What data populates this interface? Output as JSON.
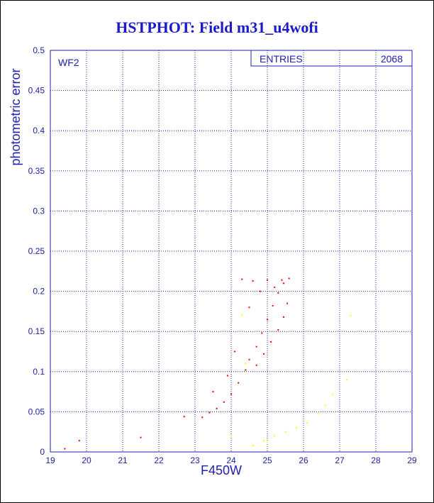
{
  "title": "HSTPHOT: Field m31_u4wofi",
  "chart_data": {
    "type": "scatter",
    "xlabel": "F450W",
    "ylabel": "photometric error",
    "xlim": [
      19,
      29
    ],
    "ylim": [
      0,
      0.5
    ],
    "x_ticks": [
      "19",
      "20",
      "21",
      "22",
      "23",
      "24",
      "25",
      "26",
      "27",
      "28",
      "29"
    ],
    "y_ticks": [
      "0",
      "0.05",
      "0.1",
      "0.15",
      "0.2",
      "0.25",
      "0.3",
      "0.35",
      "0.4",
      "0.45",
      "0.5"
    ],
    "grid": true,
    "panel_label": "WF2",
    "stats_box": {
      "label": "ENTRIES",
      "value": "2068"
    },
    "series": [
      {
        "color": "#ff0000",
        "points": [
          [
            19.4,
            0.004
          ],
          [
            19.8,
            0.014
          ],
          [
            21.5,
            0.018
          ],
          [
            22.7,
            0.044
          ],
          [
            23.2,
            0.043
          ],
          [
            23.4,
            0.049
          ],
          [
            23.6,
            0.054
          ],
          [
            23.8,
            0.062
          ],
          [
            24.0,
            0.072
          ],
          [
            24.2,
            0.086
          ],
          [
            24.4,
            0.102
          ],
          [
            24.5,
            0.115
          ],
          [
            24.7,
            0.131
          ],
          [
            24.85,
            0.148
          ],
          [
            25.0,
            0.165
          ],
          [
            25.15,
            0.182
          ],
          [
            25.3,
            0.198
          ],
          [
            25.45,
            0.21
          ],
          [
            25.6,
            0.216
          ],
          [
            24.3,
            0.215
          ],
          [
            24.6,
            0.213
          ],
          [
            25.0,
            0.214
          ],
          [
            25.4,
            0.214
          ],
          [
            24.7,
            0.108
          ],
          [
            24.9,
            0.122
          ],
          [
            25.1,
            0.137
          ],
          [
            25.3,
            0.152
          ],
          [
            25.45,
            0.168
          ],
          [
            25.55,
            0.185
          ],
          [
            24.5,
            0.18
          ],
          [
            24.8,
            0.2
          ],
          [
            25.2,
            0.205
          ],
          [
            23.5,
            0.075
          ],
          [
            23.9,
            0.095
          ],
          [
            24.1,
            0.125
          ]
        ]
      },
      {
        "color": "#ffff00",
        "points": [
          [
            24.6,
            0.008
          ],
          [
            24.9,
            0.014
          ],
          [
            25.2,
            0.02
          ],
          [
            25.5,
            0.025
          ],
          [
            25.8,
            0.03
          ],
          [
            26.1,
            0.036
          ],
          [
            26.4,
            0.048
          ],
          [
            26.6,
            0.058
          ],
          [
            26.8,
            0.072
          ],
          [
            27.2,
            0.09
          ],
          [
            27.3,
            0.17
          ],
          [
            24.3,
            0.17
          ],
          [
            24.4,
            0.11
          ],
          [
            24.0,
            0.02
          ],
          [
            25.0,
            0.012
          ]
        ]
      }
    ]
  }
}
